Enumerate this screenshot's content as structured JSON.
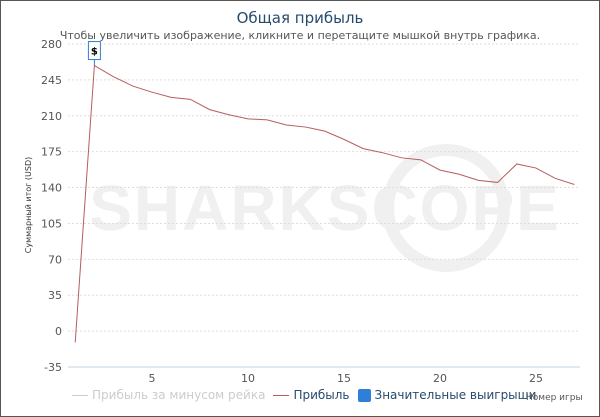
{
  "chart_data": {
    "type": "line",
    "title": "Общая прибыль",
    "subtitle": "Чтобы увеличить изображение, кликните и перетащите мышкой внутрь графика.",
    "xlabel": "Номер игры",
    "ylabel": "Суммарный итог (USD)",
    "xlim": [
      1,
      27
    ],
    "ylim": [
      -35,
      280
    ],
    "xticks": [
      5,
      10,
      15,
      20,
      25
    ],
    "yticks": [
      -35,
      0,
      35,
      70,
      105,
      140,
      175,
      210,
      245,
      280
    ],
    "grid": true,
    "legend_placement": "bottom",
    "series": [
      {
        "name": "Прибыль за минусом рейка",
        "color": "#cccccc",
        "visible": false,
        "values": []
      },
      {
        "name": "Прибыль",
        "color": "#b85c5c",
        "x": [
          1,
          2,
          3,
          4,
          5,
          6,
          7,
          8,
          9,
          10,
          11,
          12,
          13,
          14,
          15,
          16,
          17,
          18,
          19,
          20,
          21,
          22,
          23,
          24,
          25,
          26,
          27
        ],
        "values": [
          -11,
          259,
          248,
          239,
          233,
          228,
          226,
          216,
          211,
          207,
          206,
          201,
          199,
          195,
          187,
          178,
          174,
          169,
          167,
          157,
          153,
          147,
          145,
          163,
          159,
          149,
          143
        ]
      },
      {
        "name": "Значительные выигрыши",
        "color": "#2f7ed8",
        "marker": "$",
        "x": [
          2
        ]
      }
    ],
    "watermark": "SHARKSCOPE"
  }
}
